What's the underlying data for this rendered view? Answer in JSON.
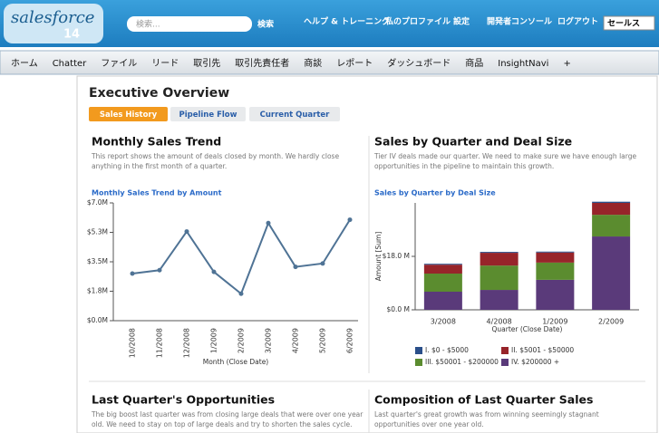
{
  "header": {
    "logo": "salesforce",
    "logo_version": "14",
    "search_placeholder": "検索...",
    "search_button": "検索",
    "links": [
      "ヘルプ & トレーニング",
      "私のプロファイル",
      "設定",
      "開発者コンソール",
      "ログアウト"
    ],
    "app_select": "セールス"
  },
  "tabs": [
    "ホーム",
    "Chatter",
    "ファイル",
    "リード",
    "取引先",
    "取引先責任者",
    "商談",
    "レポート",
    "ダッシュボード",
    "商品",
    "InsightNavi",
    "+"
  ],
  "page": {
    "title": "Executive Overview",
    "subtabs": [
      "Sales History",
      "Pipeline Flow",
      "Current Quarter"
    ]
  },
  "panels": [
    {
      "title": "Monthly Sales Trend",
      "description": [
        "This report shows the amount of deals closed by month. We hardly close",
        "anything in the first month of a quarter."
      ],
      "chart_data": {
        "type": "line",
        "title": "Monthly Sales Trend by Amount",
        "xlabel": "Month (Close Date)",
        "categories": [
          "10/2008",
          "11/2008",
          "12/2008",
          "1/2009",
          "2/2009",
          "3/2009",
          "4/2009",
          "5/2009",
          "6/2009"
        ],
        "values": [
          2.8,
          3.0,
          5.3,
          2.9,
          1.6,
          5.8,
          3.2,
          3.4,
          6.0
        ],
        "color": "#4f7395",
        "ylim": [
          0,
          7
        ],
        "yticks": [
          {
            "value": 0,
            "label": "$0.0M"
          },
          {
            "value": 1.75,
            "label": "$1.8M"
          },
          {
            "value": 3.5,
            "label": "$3.5M"
          },
          {
            "value": 5.25,
            "label": "$5.3M"
          },
          {
            "value": 7,
            "label": "$7.0M"
          }
        ]
      }
    },
    {
      "title": "Sales by Quarter and Deal Size",
      "description": [
        "Tier IV deals made our quarter. We need to make sure we have enough large",
        "opportunities in the pipeline to maintain this growth."
      ],
      "chart_data": {
        "type": "stacked_bar",
        "title": "Sales by Quarter by Deal Size",
        "xlabel": "Quarter (Close Date)",
        "ylabel": "Amount [Sum]",
        "categories": [
          "3/2008",
          "4/2008",
          "1/2009",
          "2/2009"
        ],
        "series": [
          {
            "name": "IV. $200000 +",
            "color": "#5a3a7a",
            "values": [
              6.1,
              6.7,
              10.1,
              24.7
            ]
          },
          {
            "name": "III. $50001 - $200000",
            "color": "#5b8c2f",
            "values": [
              6.1,
              8.2,
              5.8,
              7.3
            ]
          },
          {
            "name": "II. $5001 - $50000",
            "color": "#97242a",
            "values": [
              3.0,
              4.3,
              3.4,
              4.0
            ]
          },
          {
            "name": "I. $0 - $5000",
            "color": "#2a4f8a",
            "values": [
              0.3,
              0.3,
              0.3,
              0.4
            ]
          }
        ],
        "ylim": [
          0,
          36
        ],
        "yticks": [
          {
            "value": 0,
            "label": "$0.0 M"
          },
          {
            "value": 18,
            "label": "$18.0 M"
          }
        ]
      }
    }
  ],
  "bottom_panels": [
    {
      "title": "Last Quarter's Opportunities",
      "description": [
        "The big boost last quarter was from closing large deals that were over one year",
        "old. We need to stay on top of large deals and try to shorten the sales cycle."
      ]
    },
    {
      "title": "Composition of Last Quarter Sales",
      "description": [
        "Last quarter's great growth was from winning seemingly stagnant",
        "opportunities over one year old."
      ]
    }
  ]
}
